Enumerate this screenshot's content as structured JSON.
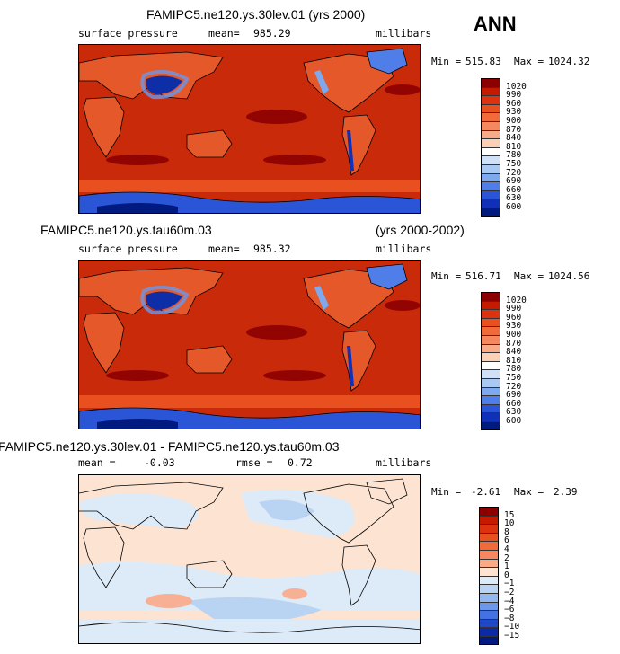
{
  "season": "ANN",
  "chart_data": [
    {
      "type": "heatmap",
      "title": "FAMIPC5.ne120.ys.30lev.01 (yrs 2000)",
      "variable": "surface pressure",
      "mean_label": "mean=",
      "mean": "985.29",
      "units": "millibars",
      "min_label": "Min =",
      "min": "515.83",
      "max_label": "Max =",
      "max": "1024.32",
      "levels": [
        "1020",
        "990",
        "960",
        "930",
        "900",
        "870",
        "840",
        "810",
        "780",
        "750",
        "720",
        "690",
        "660",
        "630",
        "600"
      ],
      "colors": [
        "#8b0000",
        "#c41a00",
        "#dd3210",
        "#e8511f",
        "#f06a3a",
        "#f5885e",
        "#f9aa88",
        "#fcd0b6",
        "#ffffff",
        "#cfe0f7",
        "#a9c9f2",
        "#7ea9ee",
        "#4f7ee8",
        "#2a55d6",
        "#1030b8",
        "#001a80"
      ]
    },
    {
      "type": "heatmap",
      "title": "FAMIPC5.ne120.ys.tau60m.03",
      "title_right": "(yrs 2000-2002)",
      "variable": "surface pressure",
      "mean_label": "mean=",
      "mean": "985.32",
      "units": "millibars",
      "min_label": "Min =",
      "min": "516.71",
      "max_label": "Max =",
      "max": "1024.56",
      "levels": [
        "1020",
        "990",
        "960",
        "930",
        "900",
        "870",
        "840",
        "810",
        "780",
        "750",
        "720",
        "690",
        "660",
        "630",
        "600"
      ],
      "colors": [
        "#8b0000",
        "#c41a00",
        "#dd3210",
        "#e8511f",
        "#f06a3a",
        "#f5885e",
        "#f9aa88",
        "#fcd0b6",
        "#ffffff",
        "#cfe0f7",
        "#a9c9f2",
        "#7ea9ee",
        "#4f7ee8",
        "#2a55d6",
        "#1030b8",
        "#001a80"
      ]
    },
    {
      "type": "heatmap",
      "title": "FAMIPC5.ne120.ys.30lev.01 - FAMIPC5.ne120.ys.tau60m.03",
      "mean_label": "mean =",
      "mean": "-0.03",
      "rmse_label": "rmse =",
      "rmse": "0.72",
      "units": "millibars",
      "min_label": "Min =",
      "min": "-2.61",
      "max_label": "Max =",
      "max": "2.39",
      "levels": [
        "15",
        "10",
        "8",
        "6",
        "4",
        "2",
        "1",
        "0",
        "−1",
        "−2",
        "−4",
        "−6",
        "−8",
        "−10",
        "−15"
      ],
      "colors": [
        "#8b0000",
        "#c41a00",
        "#dd3210",
        "#e8511f",
        "#f06a3a",
        "#f5885e",
        "#f9aa88",
        "#fde4d2",
        "#ddeaf8",
        "#b9d3f3",
        "#93b8ee",
        "#6c97ea",
        "#4472e2",
        "#2048c8",
        "#0c2aa8",
        "#001a80"
      ]
    }
  ]
}
